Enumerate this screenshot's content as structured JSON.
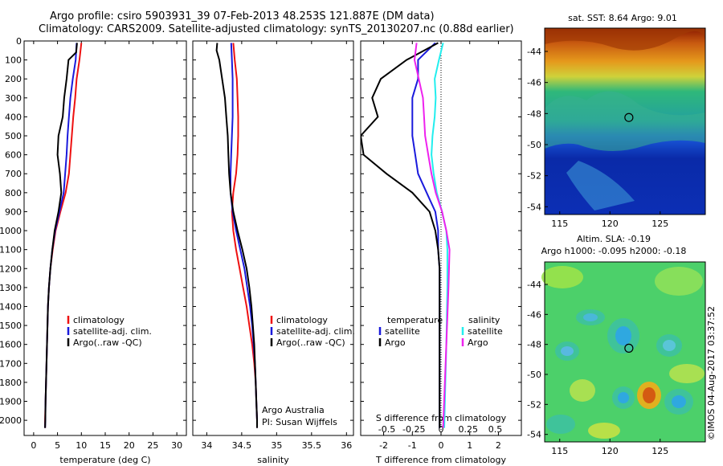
{
  "header": {
    "line1": "Argo profile: csiro 5903931_39 07-Feb-2013 48.253S 121.887E (DM data)",
    "line2": "Climatology: CARS2009. Satellite-adjusted climatology: synTS_20130207.nc (0.88d earlier)"
  },
  "colors": {
    "climatology": "#ee1111",
    "satellite": "#1a1adc",
    "argo": "#000000",
    "satellite_s": "#22eeee",
    "argo_s": "#ee22ee"
  },
  "depth_ticks": [
    "0",
    "100",
    "200",
    "300",
    "400",
    "500",
    "600",
    "700",
    "800",
    "900",
    "1000",
    "1100",
    "1200",
    "1300",
    "1400",
    "1500",
    "1600",
    "1700",
    "1800",
    "1900",
    "2000"
  ],
  "chart_data": [
    {
      "type": "line",
      "xlabel": "temperature (deg C)",
      "xlim": [
        -2,
        32
      ],
      "ylim": [
        0,
        2080
      ],
      "x_ticks": [
        "0",
        "5",
        "10",
        "15",
        "20",
        "25",
        "30"
      ],
      "legend": {
        "placement": "lower-center",
        "items": [
          "climatology",
          "satellite-adj. clim.",
          "Argo(..raw -QC)"
        ]
      },
      "series": [
        {
          "name": "climatology",
          "points": [
            [
              10,
              10
            ],
            [
              9.6,
              100
            ],
            [
              9.0,
              200
            ],
            [
              8.7,
              300
            ],
            [
              8.3,
              400
            ],
            [
              8.0,
              500
            ],
            [
              7.7,
              600
            ],
            [
              7.4,
              700
            ],
            [
              6.7,
              800
            ],
            [
              5.6,
              900
            ],
            [
              4.6,
              1000
            ],
            [
              4.0,
              1100
            ],
            [
              3.5,
              1200
            ],
            [
              3.2,
              1300
            ],
            [
              3.0,
              1400
            ],
            [
              2.9,
              1500
            ],
            [
              2.8,
              1600
            ],
            [
              2.7,
              1700
            ],
            [
              2.6,
              1800
            ],
            [
              2.5,
              1900
            ],
            [
              2.4,
              2000
            ],
            [
              2.4,
              2040
            ]
          ]
        },
        {
          "name": "satellite-adj. clim.",
          "points": [
            [
              9.0,
              10
            ],
            [
              8.8,
              100
            ],
            [
              8.2,
              200
            ],
            [
              7.7,
              300
            ],
            [
              7.4,
              400
            ],
            [
              7.1,
              500
            ],
            [
              6.9,
              600
            ],
            [
              6.6,
              700
            ],
            [
              6.3,
              800
            ],
            [
              5.4,
              900
            ],
            [
              4.5,
              1000
            ],
            [
              3.9,
              1100
            ],
            [
              3.5,
              1200
            ],
            [
              3.2,
              1300
            ],
            [
              3.0,
              1400
            ],
            [
              2.9,
              1500
            ],
            [
              2.8,
              1600
            ],
            [
              2.7,
              1700
            ],
            [
              2.6,
              1800
            ],
            [
              2.5,
              1900
            ],
            [
              2.45,
              2000
            ],
            [
              2.4,
              2040
            ]
          ]
        },
        {
          "name": "Argo(..raw -QC)",
          "points": [
            [
              9.1,
              10
            ],
            [
              8.9,
              60
            ],
            [
              7.3,
              100
            ],
            [
              6.9,
              200
            ],
            [
              6.4,
              300
            ],
            [
              6.1,
              400
            ],
            [
              5.2,
              500
            ],
            [
              5.0,
              600
            ],
            [
              5.5,
              700
            ],
            [
              5.8,
              800
            ],
            [
              5.2,
              900
            ],
            [
              4.4,
              1000
            ],
            [
              3.9,
              1100
            ],
            [
              3.5,
              1200
            ],
            [
              3.2,
              1300
            ],
            [
              3.0,
              1400
            ],
            [
              2.9,
              1500
            ],
            [
              2.8,
              1600
            ],
            [
              2.7,
              1700
            ],
            [
              2.6,
              1800
            ],
            [
              2.5,
              1900
            ],
            [
              2.45,
              2000
            ],
            [
              2.4,
              2040
            ]
          ]
        }
      ]
    },
    {
      "type": "line",
      "xlabel": "salinity",
      "xlim": [
        33.8,
        36.1
      ],
      "ylim": [
        0,
        2080
      ],
      "x_ticks": [
        "34",
        "34.5",
        "35",
        "35.5",
        "36"
      ],
      "legend": {
        "placement": "lower-right",
        "items": [
          "climatology",
          "satellite-adj. clim.",
          "Argo(..raw -QC)"
        ]
      },
      "annotations": [
        "Argo Australia",
        "PI: Susan Wijffels"
      ],
      "series": [
        {
          "name": "climatology",
          "points": [
            [
              34.38,
              10
            ],
            [
              34.4,
              100
            ],
            [
              34.43,
              200
            ],
            [
              34.44,
              300
            ],
            [
              34.45,
              400
            ],
            [
              34.45,
              500
            ],
            [
              34.44,
              600
            ],
            [
              34.42,
              700
            ],
            [
              34.38,
              800
            ],
            [
              34.36,
              900
            ],
            [
              34.38,
              1000
            ],
            [
              34.42,
              1100
            ],
            [
              34.47,
              1200
            ],
            [
              34.52,
              1300
            ],
            [
              34.57,
              1400
            ],
            [
              34.61,
              1500
            ],
            [
              34.65,
              1600
            ],
            [
              34.68,
              1700
            ],
            [
              34.7,
              1800
            ],
            [
              34.71,
              1900
            ],
            [
              34.72,
              2000
            ],
            [
              34.72,
              2040
            ]
          ]
        },
        {
          "name": "satellite-adj. clim.",
          "points": [
            [
              34.35,
              10
            ],
            [
              34.36,
              100
            ],
            [
              34.37,
              200
            ],
            [
              34.37,
              300
            ],
            [
              34.37,
              400
            ],
            [
              34.36,
              500
            ],
            [
              34.35,
              600
            ],
            [
              34.34,
              700
            ],
            [
              34.34,
              800
            ],
            [
              34.37,
              900
            ],
            [
              34.42,
              1000
            ],
            [
              34.48,
              1100
            ],
            [
              34.54,
              1200
            ],
            [
              34.58,
              1300
            ],
            [
              34.62,
              1400
            ],
            [
              34.65,
              1500
            ],
            [
              34.67,
              1600
            ],
            [
              34.69,
              1700
            ],
            [
              34.7,
              1800
            ],
            [
              34.71,
              1900
            ],
            [
              34.72,
              2000
            ],
            [
              34.72,
              2040
            ]
          ]
        },
        {
          "name": "Argo(..raw -QC)",
          "points": [
            [
              34.15,
              10
            ],
            [
              34.14,
              50
            ],
            [
              34.18,
              100
            ],
            [
              34.22,
              200
            ],
            [
              34.26,
              300
            ],
            [
              34.28,
              400
            ],
            [
              34.3,
              500
            ],
            [
              34.31,
              600
            ],
            [
              34.32,
              700
            ],
            [
              34.34,
              800
            ],
            [
              34.38,
              900
            ],
            [
              34.44,
              1000
            ],
            [
              34.51,
              1100
            ],
            [
              34.57,
              1200
            ],
            [
              34.61,
              1300
            ],
            [
              34.64,
              1400
            ],
            [
              34.66,
              1500
            ],
            [
              34.68,
              1600
            ],
            [
              34.69,
              1700
            ],
            [
              34.7,
              1800
            ],
            [
              34.71,
              1900
            ],
            [
              34.72,
              2000
            ],
            [
              34.72,
              2040
            ]
          ]
        }
      ]
    },
    {
      "type": "line",
      "xlabel": "T difference from climatology",
      "xlabel_top": "S difference from climatology",
      "xlim": [
        -2.8,
        2.8
      ],
      "ylim": [
        0,
        2080
      ],
      "x_ticks_T": [
        "-2",
        "-1",
        "0",
        "1",
        "2"
      ],
      "x_ticks_S": [
        "-0.5",
        "-0.25",
        "0",
        "0.25",
        "0.5"
      ],
      "legend": {
        "placement": "lower-center",
        "items_T": [
          "temperature",
          "satellite",
          "Argo"
        ],
        "items_S": [
          "salinity",
          "satellite",
          "Argo"
        ]
      },
      "series": [
        {
          "name": "temperature satellite",
          "points": [
            [
              -0.2,
              10
            ],
            [
              -0.8,
              100
            ],
            [
              -0.8,
              200
            ],
            [
              -1.0,
              300
            ],
            [
              -1.0,
              400
            ],
            [
              -1.0,
              500
            ],
            [
              -0.9,
              600
            ],
            [
              -0.8,
              700
            ],
            [
              -0.5,
              800
            ],
            [
              -0.2,
              900
            ],
            [
              -0.1,
              1000
            ],
            [
              -0.1,
              1100
            ],
            [
              -0.05,
              1200
            ],
            [
              -0.05,
              1400
            ],
            [
              -0.05,
              2040
            ]
          ]
        },
        {
          "name": "temperature Argo",
          "points": [
            [
              -0.1,
              10
            ],
            [
              -1.2,
              100
            ],
            [
              -2.1,
              200
            ],
            [
              -2.4,
              300
            ],
            [
              -2.2,
              400
            ],
            [
              -2.8,
              500
            ],
            [
              -2.7,
              600
            ],
            [
              -1.9,
              700
            ],
            [
              -1.0,
              800
            ],
            [
              -0.4,
              900
            ],
            [
              -0.2,
              1000
            ],
            [
              -0.1,
              1100
            ],
            [
              -0.05,
              1200
            ],
            [
              -0.05,
              2040
            ]
          ]
        },
        {
          "name": "salinity satellite",
          "points": [
            [
              0.02,
              10
            ],
            [
              -0.02,
              100
            ],
            [
              -0.06,
              200
            ],
            [
              -0.05,
              300
            ],
            [
              -0.06,
              400
            ],
            [
              -0.08,
              500
            ],
            [
              -0.09,
              600
            ],
            [
              -0.07,
              700
            ],
            [
              -0.04,
              800
            ],
            [
              0.01,
              900
            ],
            [
              0.05,
              1000
            ],
            [
              0.06,
              1100
            ],
            [
              0.06,
              1300
            ],
            [
              0.05,
              1600
            ],
            [
              0.03,
              2040
            ]
          ]
        },
        {
          "name": "salinity Argo",
          "points": [
            [
              -0.23,
              10
            ],
            [
              -0.25,
              100
            ],
            [
              -0.21,
              200
            ],
            [
              -0.17,
              300
            ],
            [
              -0.16,
              400
            ],
            [
              -0.15,
              500
            ],
            [
              -0.12,
              600
            ],
            [
              -0.09,
              700
            ],
            [
              -0.05,
              800
            ],
            [
              0.01,
              900
            ],
            [
              0.05,
              1000
            ],
            [
              0.08,
              1100
            ],
            [
              0.07,
              1300
            ],
            [
              0.05,
              1600
            ],
            [
              0.02,
              2040
            ]
          ]
        }
      ]
    },
    {
      "type": "heatmap",
      "title": "sat. SST: 8.64  Argo: 9.01",
      "x_ticks": [
        "115",
        "120",
        "125"
      ],
      "y_ticks": [
        "-44",
        "-46",
        "-48",
        "-50",
        "-52",
        "-54"
      ],
      "xlim": [
        113.5,
        129.5
      ],
      "ylim": [
        -54.5,
        -42.5
      ],
      "marker": [
        121.887,
        -48.253
      ]
    },
    {
      "type": "heatmap",
      "title": "Altim. SLA: -0.19",
      "subtitle": "Argo h1000: -0.095  h2000: -0.18",
      "x_ticks": [
        "115",
        "120",
        "125"
      ],
      "y_ticks": [
        "-44",
        "-46",
        "-48",
        "-50",
        "-52",
        "-54"
      ],
      "xlim": [
        113.5,
        129.5
      ],
      "ylim": [
        -54.5,
        -42.5
      ],
      "marker": [
        121.887,
        -48.253
      ]
    }
  ],
  "footer": {
    "credit": "©IMOS 04-Aug-2017 03:37:52"
  }
}
